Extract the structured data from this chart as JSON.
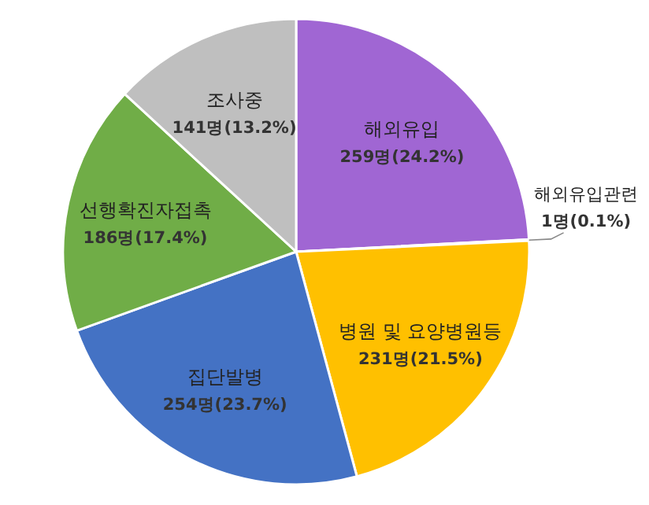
{
  "chart_data": {
    "type": "pie",
    "categories": [
      "해외유입",
      "해외유입관련",
      "병원 및 요양병원등",
      "집단발병",
      "선행확진자접촉",
      "조사중"
    ],
    "values": [
      259,
      1,
      231,
      254,
      186,
      141
    ],
    "value_labels": [
      "259명(24.2%)",
      "1명(0.1%)",
      "231명(21.5%)",
      "254명(23.7%)",
      "186명(17.4%)",
      "141명(13.2%)"
    ],
    "colors": [
      "#a066d3",
      "#ed7d31",
      "#ffc000",
      "#4472c4",
      "#70ad47",
      "#bfbfbf"
    ]
  }
}
